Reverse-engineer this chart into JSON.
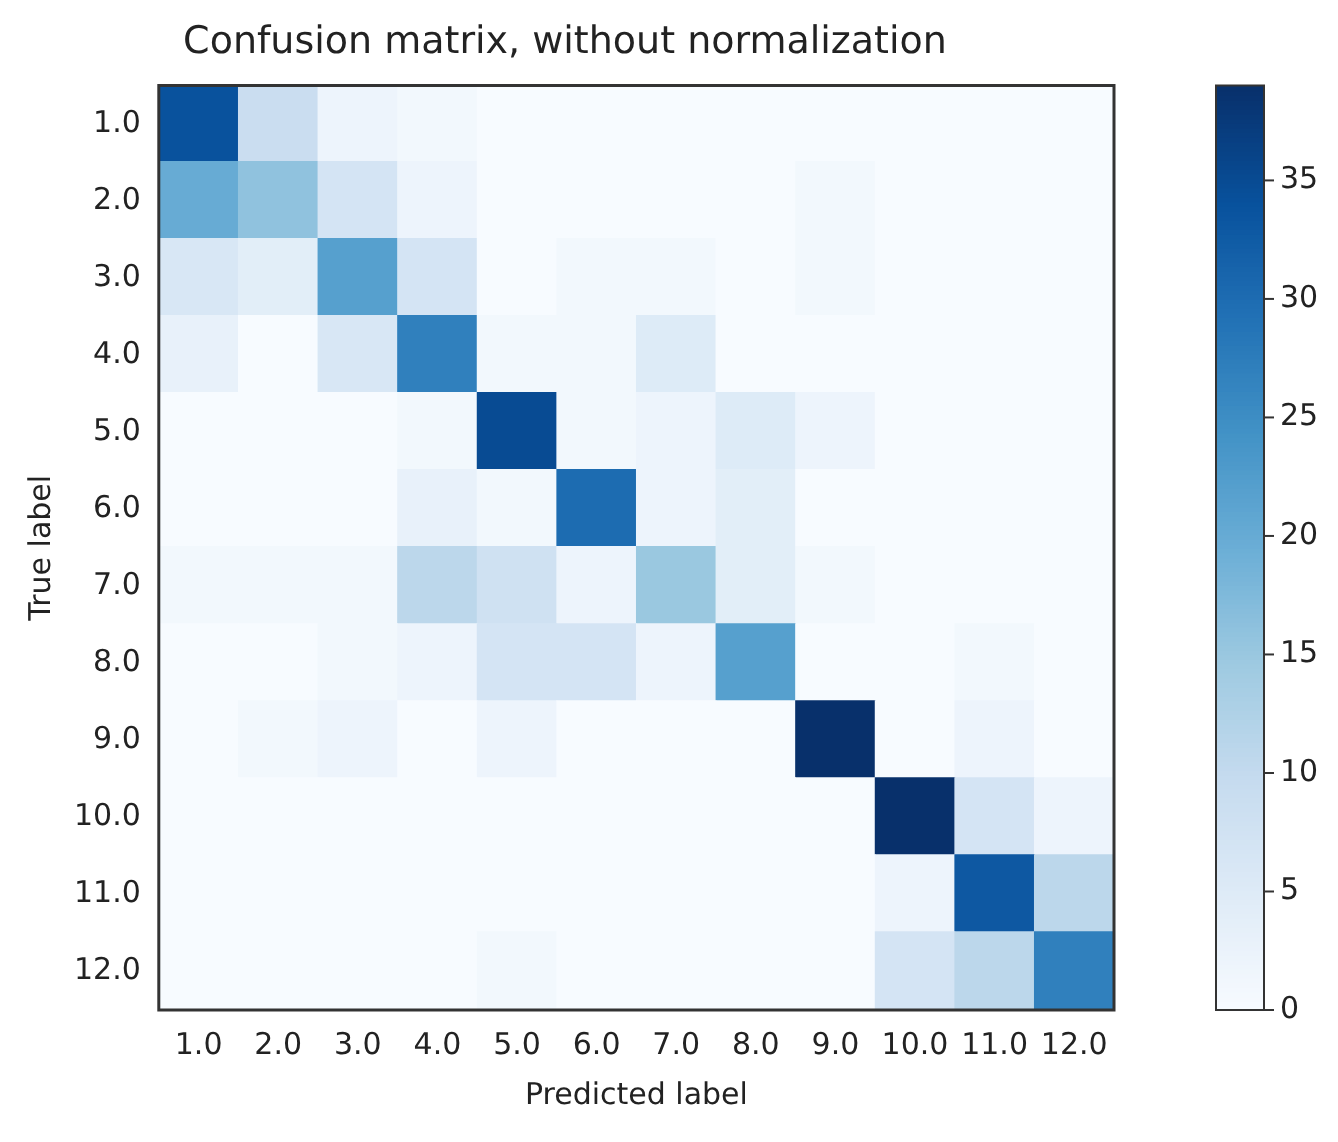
{
  "chart_data": {
    "type": "heatmap",
    "title": "Confusion matrix, without normalization",
    "xlabel": "Predicted label",
    "ylabel": "True label",
    "categories": [
      "1.0",
      "2.0",
      "3.0",
      "4.0",
      "5.0",
      "6.0",
      "7.0",
      "8.0",
      "9.0",
      "10.0",
      "11.0",
      "12.0"
    ],
    "y_categories": [
      "1.0",
      "2.0",
      "3.0",
      "4.0",
      "5.0",
      "6.0",
      "7.0",
      "8.0",
      "9.0",
      "10.0",
      "11.0",
      "12.0"
    ],
    "cells": [
      [
        34,
        9,
        2,
        1,
        0,
        0,
        0,
        0,
        0,
        0,
        0,
        0
      ],
      [
        20,
        16,
        7,
        2,
        0,
        0,
        0,
        0,
        1,
        0,
        0,
        0
      ],
      [
        6,
        4,
        22,
        7,
        0,
        1,
        1,
        0,
        1,
        0,
        0,
        0
      ],
      [
        3,
        0,
        6,
        27,
        1,
        1,
        5,
        0,
        0,
        0,
        0,
        0
      ],
      [
        0,
        0,
        0,
        1,
        35,
        1,
        2,
        5,
        2,
        0,
        0,
        0
      ],
      [
        0,
        0,
        0,
        3,
        1,
        30,
        2,
        4,
        0,
        0,
        0,
        0
      ],
      [
        1,
        1,
        1,
        11,
        8,
        2,
        15,
        4,
        1,
        0,
        0,
        0
      ],
      [
        0,
        0,
        1,
        2,
        7,
        7,
        2,
        22,
        0,
        0,
        1,
        0
      ],
      [
        0,
        1,
        2,
        0,
        2,
        0,
        0,
        0,
        39,
        0,
        2,
        0
      ],
      [
        0,
        0,
        0,
        0,
        0,
        0,
        0,
        0,
        0,
        39,
        7,
        2
      ],
      [
        0,
        0,
        0,
        0,
        0,
        0,
        0,
        0,
        0,
        2,
        33,
        11
      ],
      [
        0,
        0,
        0,
        0,
        1,
        0,
        0,
        0,
        0,
        7,
        11,
        27
      ]
    ],
    "clim": [
      0,
      39
    ],
    "cticks": [
      0,
      5,
      10,
      15,
      20,
      25,
      30,
      35
    ]
  }
}
